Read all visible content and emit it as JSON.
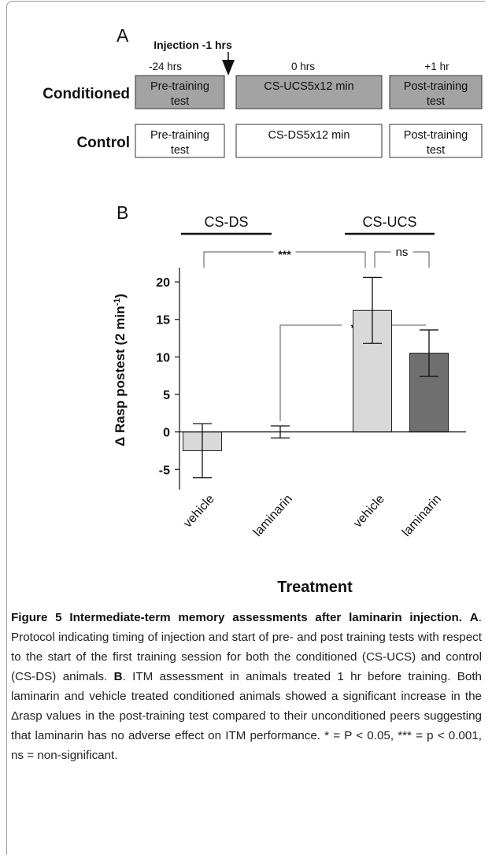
{
  "panel_a": {
    "label": "A",
    "injection": "Injection -1 hrs",
    "times": [
      "-24 hrs",
      "0 hrs",
      "+1 hr"
    ],
    "rows": [
      {
        "name": "Conditioned",
        "boxes": [
          [
            "Pre-training",
            "test"
          ],
          [
            "CS-UCS5x12 min"
          ],
          [
            "Post-training",
            "test"
          ]
        ]
      },
      {
        "name": "Control",
        "boxes": [
          [
            "Pre-training",
            "test"
          ],
          [
            "CS-DS5x12 min"
          ],
          [
            "Post-training",
            "test"
          ]
        ]
      }
    ]
  },
  "chart_data": {
    "type": "bar",
    "panel_label": "B",
    "groups": [
      "CS-DS",
      "CS-UCS"
    ],
    "categories": [
      "vehicle",
      "laminarin",
      "vehicle",
      "laminarin"
    ],
    "values": [
      -2.5,
      0,
      16.2,
      10.5
    ],
    "errors": [
      3.6,
      0.8,
      4.4,
      3.1
    ],
    "colors": [
      "#d9d9d9",
      "#d9d9d9",
      "#d9d9d9",
      "#6f6f6f"
    ],
    "ylabel": "Δ Rasp postest (2 min",
    "ylabel_sup": "-1",
    "ylabel_end": ")",
    "xlabel": "Treatment",
    "ylim": [
      -7.7,
      21.9
    ],
    "yticks": [
      -5,
      0,
      5,
      10,
      15,
      20
    ],
    "comparisons": [
      {
        "label": "***",
        "between": [
          0,
          2
        ]
      },
      {
        "label": "*",
        "between": [
          1,
          3
        ]
      },
      {
        "label": "ns",
        "between": [
          2,
          3
        ]
      }
    ]
  },
  "caption": {
    "title": "Figure 5 Intermediate-term memory assessments after laminarin injection.",
    "a_label": "A",
    "a_text": ". Protocol indicating timing of injection and start of pre- and post training tests with respect to the start of the first training session for both the conditioned (CS-UCS) and control (CS-DS) animals.",
    "b_label": "B",
    "b_text": ". ITM assessment in animals treated 1 hr before training. Both laminarin and vehicle treated conditioned animals showed a significant increase in the Δrasp values in the post-training test compared to their unconditioned peers suggesting that laminarin has no adverse effect on ITM performance. * = P < 0.05, *** = p < 0.001, ns = non-significant."
  }
}
